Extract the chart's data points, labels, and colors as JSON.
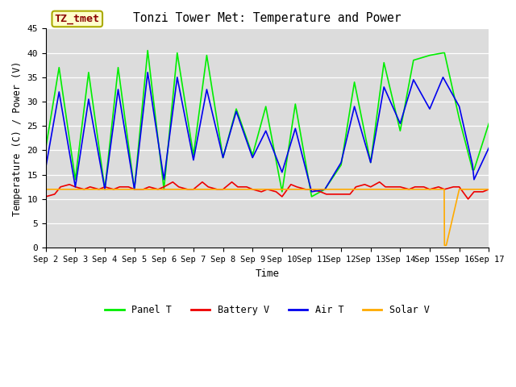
{
  "title": "Tonzi Tower Met: Temperature and Power",
  "xlabel": "Time",
  "ylabel": "Temperature (C) / Power (V)",
  "ylim": [
    0,
    45
  ],
  "yticks": [
    0,
    5,
    10,
    15,
    20,
    25,
    30,
    35,
    40,
    45
  ],
  "plot_bg_color": "#dcdcdc",
  "label_box": "TZ_tmet",
  "label_box_text_color": "#8b0000",
  "label_box_bg": "#ffffcc",
  "label_box_edge": "#aaaa00",
  "x_labels": [
    "Sep 2",
    "Sep 3",
    "Sep 4",
    "Sep 5",
    "Sep 6",
    "Sep 7",
    "Sep 8",
    "Sep 9",
    "Sep 10",
    "Sep 11",
    "Sep 12",
    "Sep 13",
    "Sep 14",
    "Sep 15",
    "Sep 16",
    "Sep 17"
  ],
  "panel_color": "#00ee00",
  "battery_color": "#ee0000",
  "air_color": "#0000ee",
  "solar_color": "#ffaa00",
  "legend_entries": [
    "Panel T",
    "Battery V",
    "Air T",
    "Solar V"
  ],
  "font_family": "monospace",
  "x_panel": [
    0.0,
    0.45,
    1.0,
    1.45,
    2.0,
    2.45,
    3.0,
    3.45,
    4.0,
    4.45,
    5.0,
    5.45,
    6.0,
    6.45,
    7.0,
    7.45,
    8.0,
    8.45,
    9.0,
    9.45,
    10.0,
    10.45,
    11.0,
    11.45,
    12.0,
    12.45,
    13.0,
    13.45,
    13.5,
    14.0,
    14.45,
    14.5,
    15.0
  ],
  "y_panel": [
    20.5,
    37.0,
    14.0,
    36.0,
    12.0,
    37.0,
    12.0,
    40.5,
    12.0,
    40.0,
    19.0,
    39.5,
    18.5,
    28.5,
    19.0,
    29.0,
    11.5,
    29.5,
    10.5,
    12.0,
    17.0,
    34.0,
    17.5,
    38.0,
    24.0,
    38.5,
    39.5,
    40.0,
    40.0,
    26.5,
    16.0,
    16.0,
    25.5
  ],
  "x_air": [
    0.0,
    0.45,
    1.0,
    1.45,
    2.0,
    2.45,
    3.0,
    3.45,
    4.0,
    4.45,
    5.0,
    5.45,
    6.0,
    6.45,
    7.0,
    7.45,
    8.0,
    8.45,
    9.0,
    9.45,
    10.0,
    10.45,
    11.0,
    11.45,
    12.0,
    12.45,
    13.0,
    13.45,
    14.0,
    14.45,
    14.5,
    15.0
  ],
  "y_air": [
    16.5,
    32.0,
    12.5,
    30.5,
    12.0,
    32.5,
    12.0,
    36.0,
    14.0,
    35.0,
    18.0,
    32.5,
    18.5,
    28.0,
    18.5,
    24.0,
    15.5,
    24.5,
    11.5,
    12.0,
    17.5,
    29.0,
    17.5,
    33.0,
    25.5,
    34.5,
    28.5,
    35.0,
    29.0,
    17.0,
    14.0,
    20.5
  ],
  "x_bat": [
    0.0,
    0.3,
    0.5,
    0.8,
    1.0,
    1.3,
    1.5,
    1.8,
    2.0,
    2.3,
    2.5,
    2.8,
    3.0,
    3.3,
    3.5,
    3.8,
    4.0,
    4.3,
    4.5,
    4.8,
    5.0,
    5.3,
    5.5,
    5.8,
    6.0,
    6.3,
    6.5,
    6.8,
    7.0,
    7.3,
    7.5,
    7.8,
    8.0,
    8.3,
    8.5,
    8.8,
    9.0,
    9.3,
    9.5,
    9.8,
    10.0,
    10.3,
    10.5,
    10.8,
    11.0,
    11.3,
    11.5,
    11.8,
    12.0,
    12.3,
    12.5,
    12.8,
    13.0,
    13.3,
    13.5,
    13.8,
    14.0,
    14.3,
    14.5,
    14.8,
    15.0
  ],
  "y_bat": [
    10.5,
    11.0,
    12.5,
    13.0,
    12.5,
    12.0,
    12.5,
    12.0,
    12.5,
    12.0,
    12.5,
    12.5,
    12.0,
    12.0,
    12.5,
    12.0,
    12.5,
    13.5,
    12.5,
    12.0,
    12.0,
    13.5,
    12.5,
    12.0,
    12.0,
    13.5,
    12.5,
    12.5,
    12.0,
    11.5,
    12.0,
    11.5,
    10.5,
    13.0,
    12.5,
    12.0,
    12.0,
    11.5,
    11.0,
    11.0,
    11.0,
    11.0,
    12.5,
    13.0,
    12.5,
    13.5,
    12.5,
    12.5,
    12.5,
    12.0,
    12.5,
    12.5,
    12.0,
    12.5,
    12.0,
    12.5,
    12.5,
    10.0,
    11.5,
    11.5,
    12.0
  ],
  "x_solar": [
    0.0,
    0.5,
    1.0,
    1.5,
    2.0,
    2.5,
    3.0,
    3.5,
    4.0,
    4.5,
    5.0,
    5.5,
    6.0,
    6.5,
    7.0,
    7.5,
    8.0,
    8.5,
    9.0,
    9.5,
    10.0,
    10.5,
    11.0,
    11.5,
    12.0,
    12.5,
    13.0,
    13.49,
    13.5,
    13.55,
    13.56,
    14.0,
    14.5,
    15.0
  ],
  "y_solar": [
    12.0,
    12.0,
    12.0,
    12.0,
    12.0,
    12.0,
    12.0,
    12.0,
    12.0,
    12.0,
    12.0,
    12.0,
    12.0,
    12.0,
    12.0,
    12.0,
    12.0,
    12.0,
    12.0,
    12.0,
    12.0,
    12.0,
    12.0,
    12.0,
    12.0,
    12.0,
    12.0,
    12.0,
    0.5,
    0.5,
    0.5,
    12.0,
    12.0,
    12.0
  ]
}
